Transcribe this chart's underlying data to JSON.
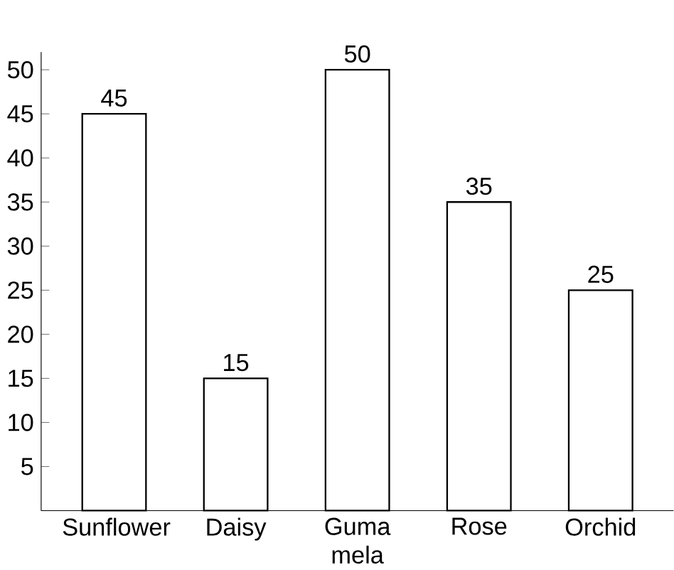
{
  "chart_data": {
    "type": "bar",
    "categories": [
      "Sunflower",
      "Daisy",
      "Guma mela",
      "Rose",
      "Orchid"
    ],
    "values": [
      45,
      15,
      50,
      35,
      25
    ],
    "color": "#ffffff",
    "ylim": [
      0,
      52
    ],
    "yticks": [
      5,
      10,
      15,
      20,
      25,
      30,
      35,
      40,
      45,
      50
    ],
    "data_labels": true
  }
}
